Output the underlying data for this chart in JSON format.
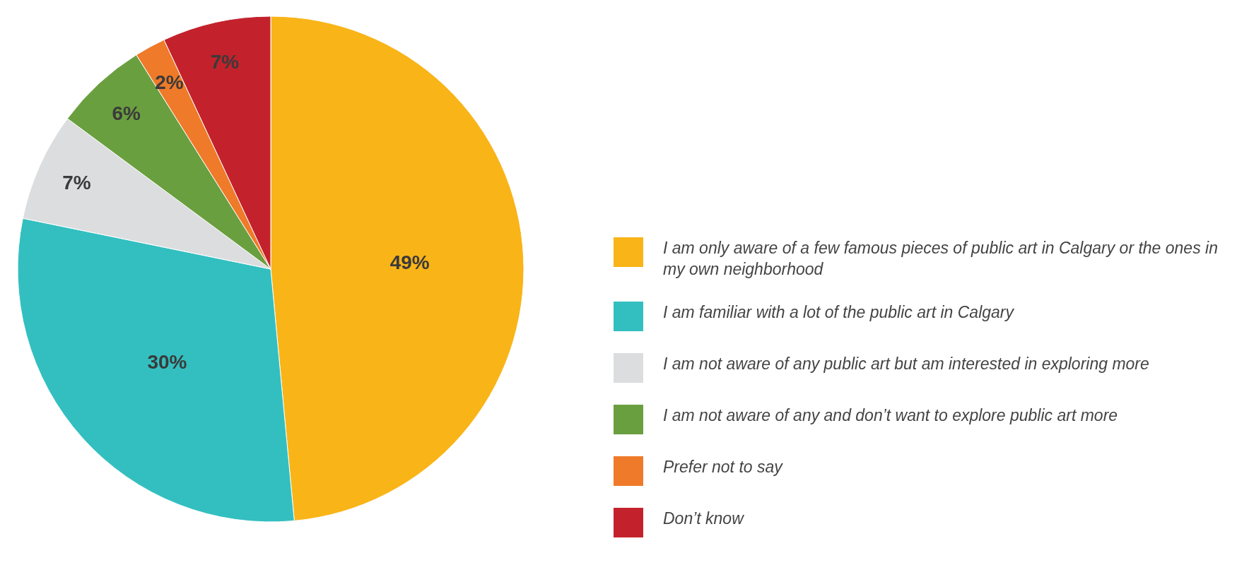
{
  "chart_data": {
    "type": "pie",
    "categories": [
      "I am only aware of a few famous pieces of public art in Calgary or the ones in my own neighborhood",
      "I am familiar with a lot of the public art in Calgary",
      "I am not aware of any public art but am interested in exploring more",
      "I am not aware of any and don’t want to explore public art more",
      "Prefer not to say",
      "Don’t know"
    ],
    "values": [
      49,
      30,
      7,
      6,
      2,
      7
    ],
    "colors": [
      "#f9b418",
      "#33bfc0",
      "#dcdddf",
      "#6a9f3f",
      "#ef7a29",
      "#c3222c"
    ],
    "value_labels": [
      "49%",
      "30%",
      "7%",
      "6%",
      "2%",
      "7%"
    ],
    "legend": "right"
  }
}
